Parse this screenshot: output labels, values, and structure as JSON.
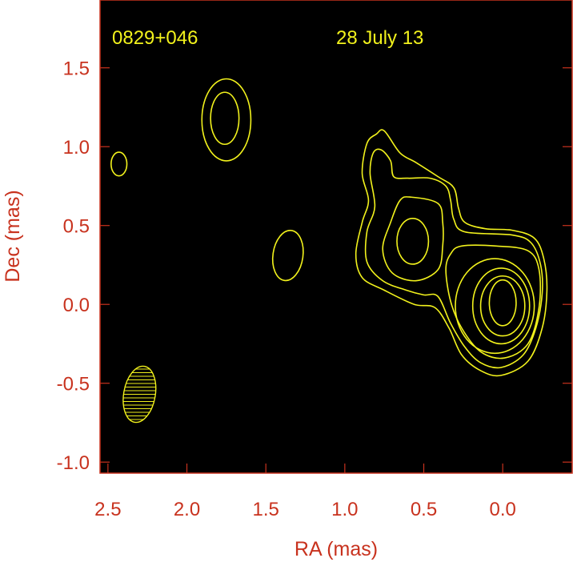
{
  "chart_data": {
    "type": "contour",
    "xlabel": "RA (mas)",
    "ylabel": "Dec (mas)",
    "xlim": [
      2.55,
      -0.44
    ],
    "ylim": [
      -1.07,
      1.93
    ],
    "x_reversed": true,
    "xticks": [
      2.5,
      2.0,
      1.5,
      1.0,
      0.5,
      0.0
    ],
    "xtick_labels": [
      "2.5",
      "2.0",
      "1.5",
      "1.0",
      "0.5",
      "0.0"
    ],
    "yticks": [
      1.5,
      1.0,
      0.5,
      0.0,
      -0.5,
      -1.0
    ],
    "ytick_labels": [
      "1.5",
      "1.0",
      "0.5",
      "0.0",
      "-0.5",
      "-1.0"
    ],
    "grid": false,
    "annotations": {
      "source": "0829+046",
      "date": "28 July 13"
    },
    "colors": {
      "background": "#000000",
      "contour": "#f2f21c",
      "axis": "#c8321e"
    },
    "contours": [
      {
        "name": "main-level-1",
        "points": [
          [
            0.75,
            1.1
          ],
          [
            0.65,
            0.96
          ],
          [
            0.55,
            0.9
          ],
          [
            0.41,
            0.81
          ],
          [
            0.31,
            0.74
          ],
          [
            0.28,
            0.61
          ],
          [
            0.24,
            0.52
          ],
          [
            0.11,
            0.48
          ],
          [
            -0.06,
            0.47
          ],
          [
            -0.2,
            0.42
          ],
          [
            -0.26,
            0.29
          ],
          [
            -0.28,
            0.09
          ],
          [
            -0.25,
            -0.15
          ],
          [
            -0.16,
            -0.36
          ],
          [
            0.01,
            -0.45
          ],
          [
            0.14,
            -0.42
          ],
          [
            0.26,
            -0.32
          ],
          [
            0.34,
            -0.15
          ],
          [
            0.43,
            -0.02
          ],
          [
            0.56,
            0.0
          ],
          [
            0.75,
            0.09
          ],
          [
            0.89,
            0.17
          ],
          [
            0.93,
            0.32
          ],
          [
            0.89,
            0.52
          ],
          [
            0.85,
            0.66
          ],
          [
            0.89,
            0.83
          ],
          [
            0.86,
            1.02
          ],
          [
            0.8,
            1.08
          ]
        ]
      },
      {
        "name": "main-level-2",
        "points": [
          [
            0.77,
            0.98
          ],
          [
            0.71,
            0.91
          ],
          [
            0.69,
            0.81
          ],
          [
            0.6,
            0.8
          ],
          [
            0.46,
            0.8
          ],
          [
            0.36,
            0.75
          ],
          [
            0.33,
            0.66
          ],
          [
            0.31,
            0.54
          ],
          [
            0.24,
            0.46
          ],
          [
            -0.06,
            0.44
          ],
          [
            -0.18,
            0.39
          ],
          [
            -0.24,
            0.25
          ],
          [
            -0.25,
            0.07
          ],
          [
            -0.21,
            -0.15
          ],
          [
            -0.13,
            -0.32
          ],
          [
            0.01,
            -0.4
          ],
          [
            0.14,
            -0.37
          ],
          [
            0.24,
            -0.27
          ],
          [
            0.33,
            -0.12
          ],
          [
            0.41,
            0.05
          ],
          [
            0.5,
            0.06
          ],
          [
            0.61,
            0.09
          ],
          [
            0.76,
            0.15
          ],
          [
            0.86,
            0.27
          ],
          [
            0.86,
            0.46
          ],
          [
            0.81,
            0.62
          ],
          [
            0.84,
            0.83
          ],
          [
            0.82,
            0.96
          ]
        ]
      },
      {
        "name": "knot-level-3",
        "points": [
          [
            0.58,
            0.68
          ],
          [
            0.41,
            0.64
          ],
          [
            0.38,
            0.52
          ],
          [
            0.38,
            0.37
          ],
          [
            0.41,
            0.22
          ],
          [
            0.55,
            0.15
          ],
          [
            0.7,
            0.2
          ],
          [
            0.76,
            0.35
          ],
          [
            0.71,
            0.52
          ],
          [
            0.65,
            0.66
          ]
        ]
      },
      {
        "name": "core-level-3",
        "points": [
          [
            0.26,
            0.37
          ],
          [
            0.04,
            0.37
          ],
          [
            -0.16,
            0.34
          ],
          [
            -0.23,
            0.22
          ],
          [
            -0.23,
            -0.02
          ],
          [
            -0.16,
            -0.25
          ],
          [
            -0.01,
            -0.34
          ],
          [
            0.14,
            -0.3
          ],
          [
            0.26,
            -0.15
          ],
          [
            0.33,
            0.02
          ],
          [
            0.36,
            0.22
          ],
          [
            0.33,
            0.32
          ]
        ]
      }
    ],
    "ellipses": [
      {
        "name": "knot-level-4",
        "center": [
          0.57,
          0.4
        ],
        "semi": [
          0.1,
          0.145
        ],
        "tilt": 0
      },
      {
        "name": "core-level-4",
        "center": [
          0.05,
          -0.01
        ],
        "semi": [
          0.25,
          0.3
        ],
        "tilt": 0
      },
      {
        "name": "core-level-5",
        "center": [
          0.01,
          -0.01
        ],
        "semi": [
          0.18,
          0.24
        ],
        "tilt": 0
      },
      {
        "name": "core-level-6",
        "center": [
          0.0,
          -0.01
        ],
        "semi": [
          0.14,
          0.19
        ],
        "tilt": 0
      },
      {
        "name": "core-level-7",
        "center": [
          0.0,
          0.01
        ],
        "semi": [
          0.085,
          0.145
        ],
        "tilt": 0
      },
      {
        "name": "north-blob-outer",
        "center": [
          1.75,
          1.17
        ],
        "semi": [
          0.155,
          0.26
        ],
        "tilt": 0
      },
      {
        "name": "north-blob-inner",
        "center": [
          1.76,
          1.18
        ],
        "semi": [
          0.09,
          0.165
        ],
        "tilt": 0
      },
      {
        "name": "west-blob",
        "center": [
          2.43,
          0.89
        ],
        "semi": [
          0.05,
          0.075
        ],
        "tilt": 0
      },
      {
        "name": "middle-blob",
        "center": [
          1.36,
          0.31
        ],
        "semi": [
          0.095,
          0.16
        ],
        "tilt": 8
      }
    ],
    "beam": {
      "center": [
        2.3,
        -0.57
      ],
      "semi": [
        0.1,
        0.18
      ],
      "tilt": 10,
      "hatch": "horizontal"
    }
  }
}
